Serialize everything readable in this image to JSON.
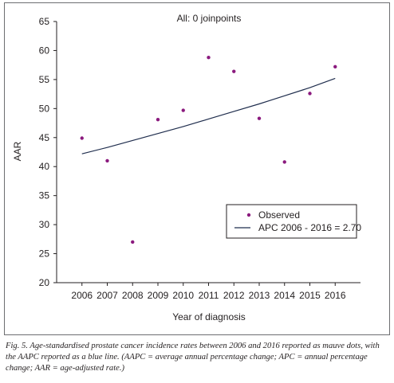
{
  "chart_data": {
    "type": "scatter",
    "title": "All: 0 joinpoints",
    "xlabel": "Year of diagnosis",
    "ylabel": "AAR",
    "x": [
      2006,
      2007,
      2008,
      2009,
      2010,
      2011,
      2012,
      2013,
      2014,
      2015,
      2016
    ],
    "xticks": [
      "2006",
      "2007",
      "2008",
      "2009",
      "2010",
      "2011",
      "2012",
      "2013",
      "2014",
      "2015",
      "2016"
    ],
    "xlim": [
      2005,
      2017
    ],
    "ylim": [
      20,
      65
    ],
    "yticks": [
      20,
      25,
      30,
      35,
      40,
      45,
      50,
      55,
      60,
      65
    ],
    "grid": false,
    "legend_position": "lower-right",
    "series": [
      {
        "name": "Observed",
        "kind": "points",
        "color": "#8b1a7e",
        "values": [
          44.9,
          41.0,
          27.0,
          48.1,
          49.7,
          58.8,
          56.4,
          48.3,
          40.8,
          52.6,
          57.2
        ]
      },
      {
        "name": "APC 2006 - 2016 = 2.70",
        "kind": "line",
        "color": "#1f2d4d",
        "values": [
          42.2,
          43.3,
          44.5,
          45.7,
          46.9,
          48.2,
          49.5,
          50.8,
          52.2,
          53.6,
          55.2
        ]
      }
    ]
  },
  "caption": "Fig. 5. Age-standardised prostate cancer incidence rates between 2006 and 2016 reported as mauve dots, with the AAPC reported as a blue line. (AAPC = average annual percentage change; APC = annual percentage change; AAR = age-adjusted rate.)"
}
